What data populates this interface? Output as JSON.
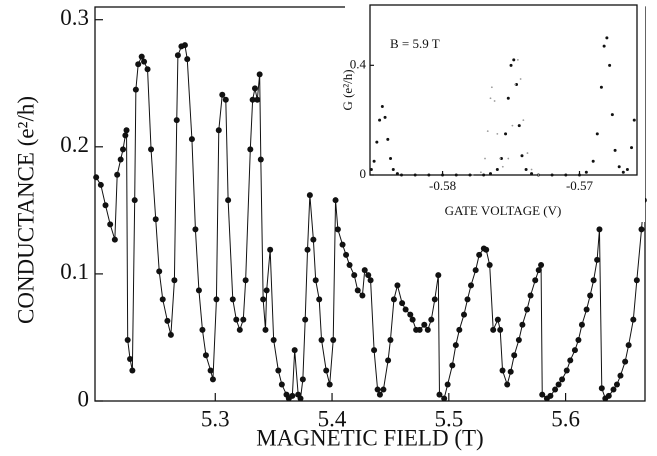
{
  "chart_data": [
    {
      "type": "line",
      "xlabel": "MAGNETIC FIELD (T)",
      "ylabel": "CONDUCTANCE (e²/h)",
      "xlim": [
        5.197,
        5.668
      ],
      "ylim": [
        0,
        0.31
      ],
      "xticks": [
        5.3,
        5.4,
        5.5,
        5.6
      ],
      "yticks": [
        0,
        0.1,
        0.2,
        0.3
      ],
      "series": [
        {
          "color": "#111111",
          "style": "line-markers",
          "x": [
            5.198,
            5.202,
            5.206,
            5.21,
            5.214,
            5.216,
            5.219,
            5.221,
            5.223,
            5.224,
            5.225,
            5.227,
            5.229,
            5.231,
            5.232,
            5.234,
            5.237,
            5.239,
            5.242,
            5.245,
            5.249,
            5.252,
            5.255,
            5.259,
            5.262,
            5.265,
            5.267,
            5.268,
            5.271,
            5.274,
            5.276,
            5.28,
            5.283,
            5.286,
            5.289,
            5.292,
            5.296,
            5.298,
            5.301,
            5.303,
            5.306,
            5.309,
            5.311,
            5.315,
            5.318,
            5.321,
            5.324,
            5.326,
            5.33,
            5.332,
            5.334,
            5.336,
            5.338,
            5.339,
            5.341,
            5.343,
            5.344,
            5.347,
            5.35,
            5.354,
            5.357,
            5.361,
            5.363,
            5.366,
            5.368,
            5.371,
            5.373,
            5.375,
            5.377,
            5.379,
            5.381,
            5.384,
            5.386,
            5.389,
            5.391,
            5.395,
            5.398,
            5.401,
            5.403,
            5.405,
            5.409,
            5.412,
            5.415,
            5.419,
            5.422,
            5.426,
            5.428,
            5.431,
            5.433,
            5.436,
            5.439,
            5.441,
            5.444,
            5.448,
            5.45,
            5.453,
            5.456,
            5.46,
            5.463,
            5.467,
            5.469,
            5.472,
            5.475,
            5.479,
            5.482,
            5.485,
            5.488,
            5.491,
            5.492,
            5.496,
            5.499,
            5.503,
            5.506,
            5.509,
            5.513,
            5.516,
            5.519,
            5.523,
            5.526,
            5.53,
            5.532,
            5.535,
            5.538,
            5.542,
            5.544,
            5.546,
            5.55,
            5.553,
            5.556,
            5.56,
            5.563,
            5.567,
            5.57,
            5.574,
            5.577,
            5.579,
            5.58,
            5.584,
            5.587,
            5.591,
            5.594,
            5.597,
            5.601,
            5.604,
            5.608,
            5.611,
            5.614,
            5.618,
            5.621,
            5.624,
            5.627,
            5.629,
            5.631,
            5.634,
            5.637,
            5.641,
            5.644,
            5.647,
            5.651,
            5.654,
            5.658,
            5.661,
            5.665,
            5.667
          ],
          "values": [
            0.176,
            0.17,
            0.154,
            0.139,
            0.127,
            0.178,
            0.19,
            0.198,
            0.209,
            0.213,
            0.048,
            0.033,
            0.024,
            0.158,
            0.245,
            0.265,
            0.271,
            0.267,
            0.261,
            0.198,
            0.143,
            0.102,
            0.08,
            0.063,
            0.052,
            0.095,
            0.221,
            0.272,
            0.279,
            0.28,
            0.269,
            0.206,
            0.135,
            0.087,
            0.056,
            0.036,
            0.024,
            0.017,
            0.08,
            0.213,
            0.241,
            0.237,
            0.158,
            0.08,
            0.064,
            0.056,
            0.064,
            0.095,
            0.198,
            0.237,
            0.246,
            0.237,
            0.257,
            0.19,
            0.08,
            0.056,
            0.087,
            0.119,
            0.048,
            0.024,
            0.013,
            0.005,
            0.002,
            0.004,
            0.04,
            0.005,
            0.002,
            0.017,
            0.064,
            0.119,
            0.162,
            0.127,
            0.095,
            0.08,
            0.048,
            0.024,
            0.013,
            0.048,
            0.158,
            0.135,
            0.123,
            0.115,
            0.107,
            0.099,
            0.087,
            0.083,
            0.103,
            0.099,
            0.095,
            0.04,
            0.009,
            0.005,
            0.009,
            0.032,
            0.048,
            0.08,
            0.091,
            0.077,
            0.072,
            0.068,
            0.064,
            0.056,
            0.056,
            0.06,
            0.056,
            0.064,
            0.08,
            0.099,
            0.005,
            0.002,
            0.013,
            0.028,
            0.044,
            0.056,
            0.068,
            0.08,
            0.091,
            0.103,
            0.115,
            0.12,
            0.119,
            0.107,
            0.056,
            0.064,
            0.056,
            0.024,
            0.013,
            0.023,
            0.036,
            0.048,
            0.06,
            0.072,
            0.083,
            0.095,
            0.103,
            0.107,
            0.005,
            0.002,
            0.004,
            0.009,
            0.013,
            0.017,
            0.024,
            0.032,
            0.04,
            0.048,
            0.06,
            0.072,
            0.083,
            0.095,
            0.111,
            0.135,
            0.01,
            0.002,
            0.004,
            0.009,
            0.013,
            0.02,
            0.031,
            0.044,
            0.064,
            0.095,
            0.135,
            0.158
          ]
        }
      ]
    },
    {
      "type": "line",
      "xlabel": "GATE VOLTAGE (V)",
      "ylabel": "G (e²/h)",
      "annotation": "B = 5.9 T",
      "xlim": [
        -0.5853,
        -0.5658
      ],
      "ylim": [
        0,
        0.62
      ],
      "xticks": [
        -0.58,
        -0.57
      ],
      "yticks": [
        0,
        0.4
      ],
      "series": [
        {
          "color": "#111111",
          "style": "markers",
          "x": [
            -0.5852,
            -0.585,
            -0.5848,
            -0.5846,
            -0.5844,
            -0.5842,
            -0.584,
            -0.5838,
            -0.5836,
            -0.5833,
            -0.583,
            -0.582,
            -0.581,
            -0.58,
            -0.579,
            -0.578,
            -0.577,
            -0.5765,
            -0.576,
            -0.5757,
            -0.5754,
            -0.5752,
            -0.575,
            -0.5748,
            -0.5746,
            -0.5744,
            -0.5742,
            -0.5739,
            -0.5735,
            -0.573,
            -0.572,
            -0.571,
            -0.57,
            -0.5695,
            -0.569,
            -0.5687,
            -0.5684,
            -0.5682,
            -0.568,
            -0.5678,
            -0.5676,
            -0.5674,
            -0.5671,
            -0.5668,
            -0.5665,
            -0.5662,
            -0.566
          ],
          "values": [
            0.02,
            0.05,
            0.12,
            0.2,
            0.25,
            0.21,
            0.13,
            0.06,
            0.02,
            0.005,
            0,
            0,
            0,
            0,
            0,
            0,
            0,
            0.005,
            0.02,
            0.06,
            0.15,
            0.28,
            0.4,
            0.42,
            0.33,
            0.18,
            0.07,
            0.02,
            0.005,
            0,
            0,
            0,
            0,
            0.01,
            0.05,
            0.15,
            0.32,
            0.47,
            0.5,
            0.4,
            0.22,
            0.09,
            0.03,
            0.01,
            0.02,
            0.1,
            0.2
          ]
        },
        {
          "color": "#9a9a9a",
          "style": "dotted",
          "x": [
            -0.5778,
            -0.5772,
            -0.5769,
            -0.5767,
            -0.5765,
            -0.5764,
            -0.5762,
            -0.576,
            -0.5758,
            -0.5756,
            -0.5752,
            -0.5749,
            -0.5747,
            -0.5745,
            -0.5743,
            -0.5741,
            -0.5738,
            -0.5735,
            -0.573
          ],
          "values": [
            0,
            0.01,
            0.06,
            0.16,
            0.28,
            0.32,
            0.27,
            0.15,
            0.06,
            0.03,
            0.06,
            0.18,
            0.33,
            0.42,
            0.35,
            0.2,
            0.08,
            0.02,
            0
          ]
        }
      ]
    }
  ]
}
